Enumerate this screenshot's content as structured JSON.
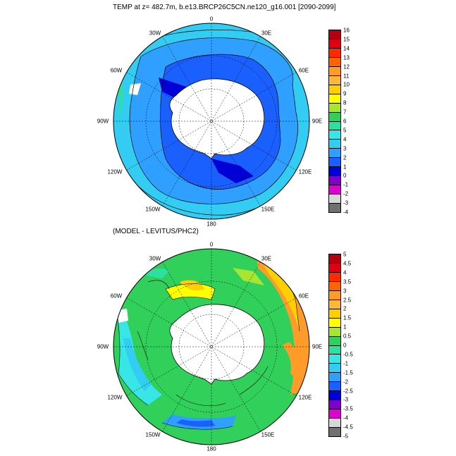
{
  "map1": {
    "title": "TEMP at z= 482.7m, b.e13.BRCP26C5CN.ne120_g16.001 [2090-2099]",
    "labels": {
      "top": "0",
      "tr": "30E",
      "rt": "60E",
      "r": "90E",
      "rb": "120E",
      "br": "150E",
      "bottom": "180",
      "bl": "150W",
      "lb": "120W",
      "l": "90W",
      "lt": "60W",
      "tl": "30W"
    },
    "colorbar": {
      "labels": [
        "16",
        "15",
        "14",
        "13",
        "12",
        "11",
        "10",
        "9",
        "8",
        "7",
        "6",
        "5",
        "4",
        "3",
        "2",
        "1",
        "0",
        "-1",
        "-2",
        "-3",
        "-4"
      ],
      "colors": [
        "#b4000f",
        "#e00010",
        "#ff2a00",
        "#ff6400",
        "#ff9b28",
        "#ffb43c",
        "#ffd000",
        "#ffff00",
        "#a6e632",
        "#31d05a",
        "#2be0a0",
        "#39e6e6",
        "#33ccf2",
        "#2fa0ff",
        "#1a60ff",
        "#0000d7",
        "#8000c8",
        "#e000d0",
        "#d7d7d7",
        "#707070"
      ]
    }
  },
  "map2": {
    "title": "(MODEL - LEVITUS/PHC2)",
    "labels": {
      "top": "0",
      "tr": "30E",
      "rt": "60E",
      "r": "90E",
      "rb": "120E",
      "br": "150E",
      "bottom": "180",
      "bl": "150W",
      "lb": "120W",
      "l": "90W",
      "lt": "60W",
      "tl": "30W"
    },
    "colorbar": {
      "labels": [
        "5",
        "4.5",
        "4",
        "3.5",
        "3",
        "2.5",
        "2",
        "1.5",
        "1",
        "0.5",
        "0",
        "-0.5",
        "-1",
        "-1.5",
        "-2",
        "-2.5",
        "-3",
        "-3.5",
        "-4",
        "-4.5",
        "-5"
      ],
      "colors": [
        "#b4000f",
        "#e00010",
        "#ff2a00",
        "#ff6400",
        "#ff9b28",
        "#ffb43c",
        "#ffd000",
        "#ffff00",
        "#a6e632",
        "#31d05a",
        "#2be0a0",
        "#39e6e6",
        "#33ccf2",
        "#2fa0ff",
        "#1a60ff",
        "#0000d7",
        "#8000c8",
        "#e000d0",
        "#d7d7d7",
        "#707070"
      ]
    }
  }
}
